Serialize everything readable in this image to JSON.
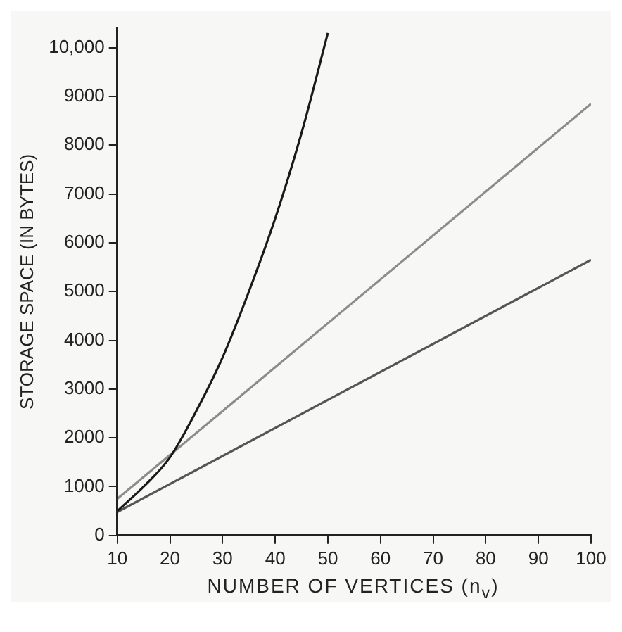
{
  "chart_data": {
    "type": "line",
    "xlabel": "NUMBER OF VERTICES (n$_{v}$)",
    "ylabel": "STORAGE SPACE (IN BYTES)",
    "x": [
      10,
      15,
      20,
      25,
      30,
      35,
      40,
      45,
      50,
      100
    ],
    "series": [
      {
        "color": "#1a1a1a",
        "values": [
          500,
          1000,
          1600,
          2550,
          3650,
          5000,
          6500,
          8250,
          10300,
          null
        ]
      },
      {
        "color": "#8c8c8c",
        "values": [
          750,
          null,
          null,
          null,
          null,
          null,
          null,
          null,
          null,
          8850
        ]
      },
      {
        "color": "#555555",
        "values": [
          480,
          null,
          null,
          null,
          null,
          null,
          null,
          null,
          null,
          5650
        ]
      }
    ],
    "xlim": [
      10,
      100
    ],
    "xticks": [
      10,
      20,
      30,
      40,
      50,
      60,
      70,
      80,
      90,
      100
    ],
    "ylim": [
      0,
      10400
    ],
    "yticks": [
      0,
      1000,
      2000,
      3000,
      4000,
      5000,
      6000,
      7000,
      8000,
      9000,
      {
        "value": 10000,
        "label": "10,000"
      }
    ],
    "grid": false,
    "legend": false,
    "marker": "none",
    "line_style": "solid"
  }
}
